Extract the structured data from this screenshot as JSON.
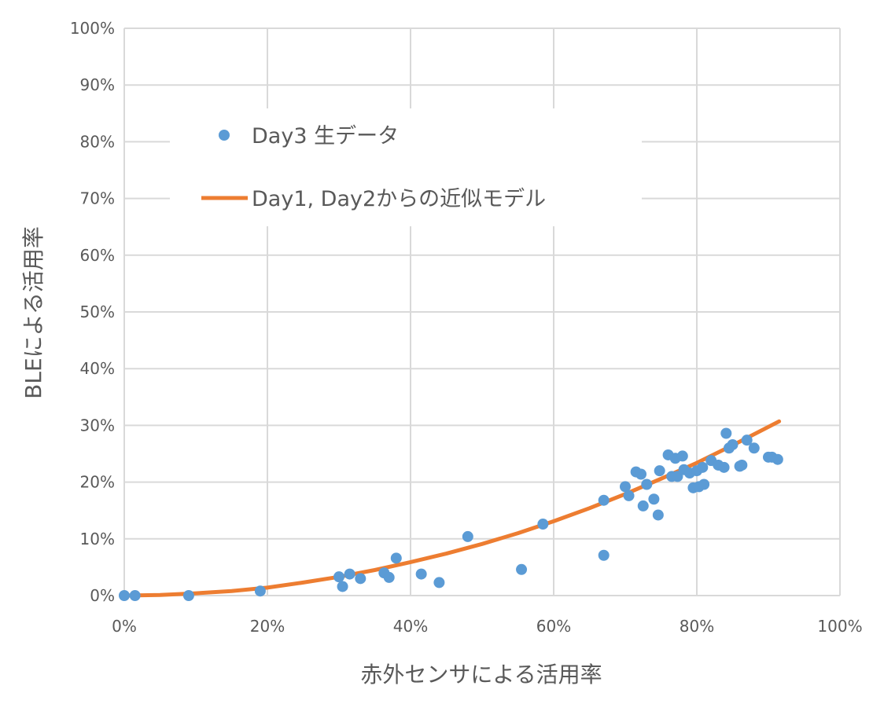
{
  "chart_data": {
    "type": "scatter",
    "xlabel": "赤外センサによる活用率",
    "ylabel": "BLEによる活用率",
    "xlim": [
      0,
      100
    ],
    "ylim": [
      0,
      100
    ],
    "x_ticks": [
      "0%",
      "20%",
      "40%",
      "60%",
      "80%",
      "100%"
    ],
    "y_ticks": [
      "0%",
      "10%",
      "20%",
      "30%",
      "40%",
      "50%",
      "60%",
      "70%",
      "80%",
      "90%",
      "100%"
    ],
    "grid": true,
    "legend_position": "upper-left",
    "colors": {
      "scatter": "#5B9BD5",
      "line": "#ED7D31",
      "grid": "#d9d9d9",
      "text": "#595959"
    },
    "series": [
      {
        "name": "Day3 生データ",
        "kind": "scatter",
        "points": [
          [
            0,
            0
          ],
          [
            1.5,
            0
          ],
          [
            9,
            0
          ],
          [
            19,
            0.8
          ],
          [
            30,
            3.3
          ],
          [
            30.5,
            1.6
          ],
          [
            31.5,
            3.8
          ],
          [
            33,
            3.0
          ],
          [
            36.3,
            4.0
          ],
          [
            37,
            3.2
          ],
          [
            38,
            6.6
          ],
          [
            41.5,
            3.8
          ],
          [
            44,
            2.3
          ],
          [
            48,
            10.4
          ],
          [
            55.5,
            4.6
          ],
          [
            58.5,
            12.6
          ],
          [
            67,
            7.1
          ],
          [
            67,
            16.8
          ],
          [
            70,
            19.2
          ],
          [
            70.5,
            17.6
          ],
          [
            71.5,
            21.8
          ],
          [
            72.2,
            21.4
          ],
          [
            72.5,
            15.8
          ],
          [
            73,
            19.6
          ],
          [
            74,
            17.0
          ],
          [
            74.6,
            14.2
          ],
          [
            74.8,
            22.0
          ],
          [
            76,
            24.8
          ],
          [
            76.5,
            21.0
          ],
          [
            77,
            24.2
          ],
          [
            77.3,
            21.0
          ],
          [
            78,
            24.6
          ],
          [
            78.2,
            22.2
          ],
          [
            79,
            21.6
          ],
          [
            79.5,
            19.0
          ],
          [
            80,
            22.0
          ],
          [
            80.3,
            19.2
          ],
          [
            80.8,
            22.6
          ],
          [
            81,
            19.6
          ],
          [
            82,
            23.8
          ],
          [
            83,
            23.0
          ],
          [
            83.8,
            22.6
          ],
          [
            84.1,
            28.6
          ],
          [
            84.5,
            26.0
          ],
          [
            85,
            26.6
          ],
          [
            86,
            22.8
          ],
          [
            86.3,
            23.0
          ],
          [
            87,
            27.4
          ],
          [
            88,
            26.0
          ],
          [
            90,
            24.4
          ],
          [
            90.5,
            24.4
          ],
          [
            91.3,
            24.0
          ]
        ]
      },
      {
        "name": "Day1, Day2からの近似モデル",
        "kind": "line",
        "x": [
          0,
          5,
          10,
          15,
          20,
          25,
          30,
          35,
          40,
          45,
          50,
          55,
          60,
          65,
          70,
          75,
          80,
          85,
          91.5
        ],
        "y": [
          0,
          0.1,
          0.4,
          0.8,
          1.4,
          2.3,
          3.3,
          4.5,
          5.9,
          7.4,
          9.1,
          11.0,
          13.1,
          15.4,
          17.9,
          20.6,
          23.4,
          26.5,
          30.7
        ]
      }
    ]
  }
}
